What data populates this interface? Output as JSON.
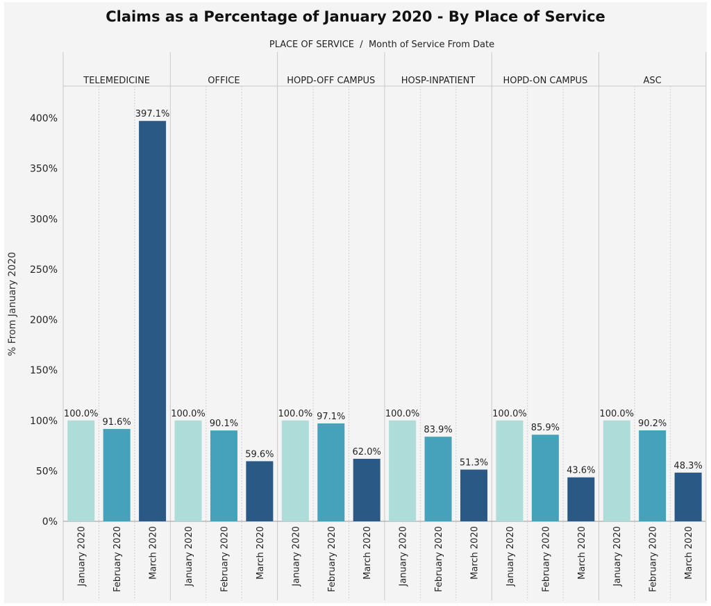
{
  "chart_data": {
    "type": "bar",
    "title": "Claims as a Percentage of January 2020 - By Place of Service",
    "header_dimension": "PLACE OF SERVICE",
    "header_separator": "  /  ",
    "header_subdimension": "Month of Service From Date",
    "ylabel": "% From January 2020",
    "ylim": [
      0,
      430
    ],
    "yticks": [
      0,
      50,
      100,
      150,
      200,
      250,
      300,
      350,
      400
    ],
    "ytick_labels": [
      "0%",
      "50%",
      "100%",
      "150%",
      "200%",
      "250%",
      "300%",
      "350%",
      "400%"
    ],
    "months": [
      "January 2020",
      "February 2020",
      "March 2020"
    ],
    "month_colors": [
      "#aedcd8",
      "#46a2bb",
      "#2b5985"
    ],
    "groups": [
      {
        "name": "TELEMEDICINE",
        "values": [
          100.0,
          91.6,
          397.1
        ],
        "labels": [
          "100.0%",
          "91.6%",
          "397.1%"
        ]
      },
      {
        "name": "OFFICE",
        "values": [
          100.0,
          90.1,
          59.6
        ],
        "labels": [
          "100.0%",
          "90.1%",
          "59.6%"
        ]
      },
      {
        "name": "HOPD-OFF CAMPUS",
        "values": [
          100.0,
          97.1,
          62.0
        ],
        "labels": [
          "100.0%",
          "97.1%",
          "62.0%"
        ]
      },
      {
        "name": "HOSP-INPATIENT",
        "values": [
          100.0,
          83.9,
          51.3
        ],
        "labels": [
          "100.0%",
          "83.9%",
          "51.3%"
        ]
      },
      {
        "name": "HOPD-ON CAMPUS",
        "values": [
          100.0,
          85.9,
          43.6
        ],
        "labels": [
          "100.0%",
          "85.9%",
          "43.6%"
        ]
      },
      {
        "name": "ASC",
        "values": [
          100.0,
          90.2,
          48.3
        ],
        "labels": [
          "100.0%",
          "90.2%",
          "48.3%"
        ]
      }
    ],
    "grid": "vertical dotted separators between months, solid between places of service"
  }
}
